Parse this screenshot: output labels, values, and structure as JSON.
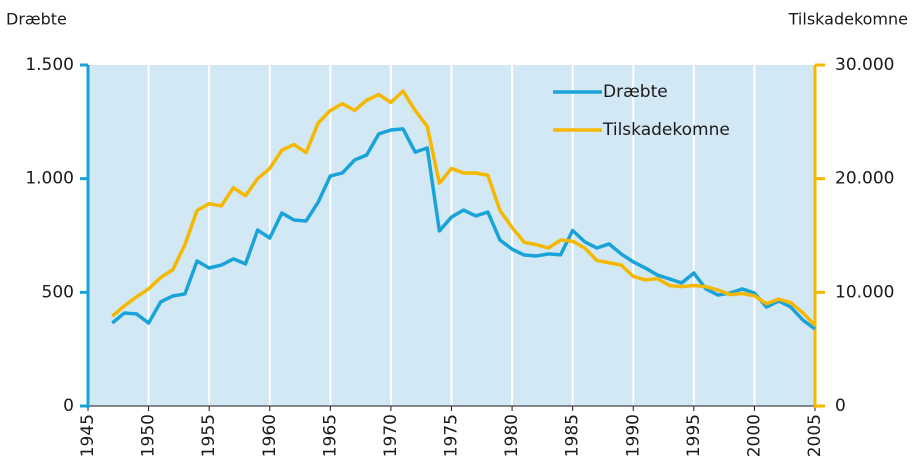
{
  "chart_data": {
    "type": "line",
    "y_label": "Dræbte",
    "y2_label": "Tilskadekomne",
    "x": [
      1947,
      1948,
      1949,
      1950,
      1951,
      1952,
      1953,
      1954,
      1955,
      1956,
      1957,
      1958,
      1959,
      1960,
      1961,
      1962,
      1963,
      1964,
      1965,
      1966,
      1967,
      1968,
      1969,
      1970,
      1971,
      1972,
      1973,
      1974,
      1975,
      1976,
      1977,
      1978,
      1979,
      1980,
      1981,
      1982,
      1983,
      1984,
      1985,
      1986,
      1987,
      1988,
      1989,
      1990,
      1991,
      1992,
      1993,
      1994,
      1995,
      1996,
      1997,
      1998,
      1999,
      2000,
      2001,
      2002,
      2003,
      2004,
      2005
    ],
    "series": [
      {
        "name": "Dræbte",
        "color": "#1aa3d9",
        "axis": "y",
        "values": [
          365,
          409,
          405,
          365,
          458,
          484,
          493,
          638,
          607,
          620,
          647,
          625,
          774,
          739,
          849,
          818,
          814,
          897,
          1012,
          1025,
          1082,
          1104,
          1197,
          1214,
          1219,
          1117,
          1135,
          770,
          831,
          862,
          836,
          853,
          730,
          690,
          664,
          660,
          669,
          665,
          772,
          722,
          695,
          713,
          669,
          634,
          607,
          576,
          559,
          541,
          585,
          515,
          488,
          497,
          515,
          497,
          435,
          462,
          435,
          378,
          339
        ]
      },
      {
        "name": "Tilskadekomne",
        "color": "#f5b800",
        "axis": "y2",
        "values": [
          7900,
          8800,
          9600,
          10300,
          11300,
          12000,
          14200,
          17200,
          17800,
          17600,
          19200,
          18500,
          20000,
          20900,
          22500,
          23000,
          22300,
          24900,
          26000,
          26600,
          26000,
          26900,
          27400,
          26700,
          27700,
          26000,
          24600,
          19600,
          20900,
          20500,
          20500,
          20300,
          17200,
          15700,
          14400,
          14200,
          13900,
          14600,
          14500,
          13900,
          12800,
          12600,
          12400,
          11400,
          11100,
          11200,
          10600,
          10500,
          10600,
          10500,
          10200,
          9800,
          9900,
          9700,
          9000,
          9400,
          9100,
          8200,
          7100
        ]
      }
    ],
    "xlim": [
      1945,
      2005
    ],
    "xticks": [
      1945,
      1950,
      1955,
      1960,
      1965,
      1970,
      1975,
      1980,
      1985,
      1990,
      1995,
      2000,
      2005
    ],
    "ylim": [
      0,
      1500
    ],
    "yticks": [
      0,
      500,
      {
        "value": 1000,
        "label": "1.000"
      },
      {
        "value": 1500,
        "label": "1.500"
      }
    ],
    "y2lim": [
      0,
      30000
    ],
    "y2ticks": [
      0,
      {
        "value": 10000,
        "label": "10.000"
      },
      {
        "value": 20000,
        "label": "20.000"
      },
      {
        "value": 30000,
        "label": "30.000"
      }
    ],
    "grid": true,
    "background": "#d3e8f5",
    "legend": "upper right"
  }
}
